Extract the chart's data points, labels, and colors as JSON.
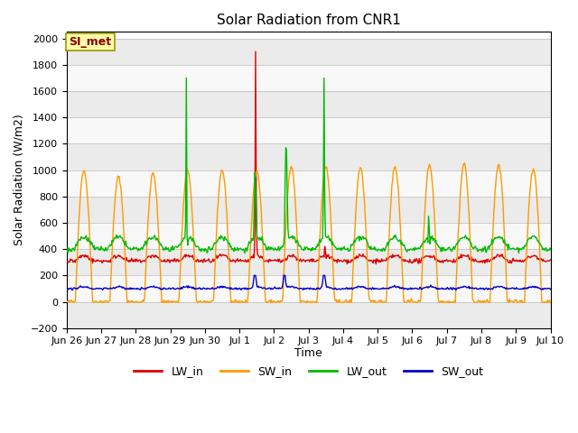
{
  "title": "Solar Radiation from CNR1",
  "xlabel": "Time",
  "ylabel": "Solar Radiation (W/m2)",
  "ylim": [
    -200,
    2050
  ],
  "yticks": [
    -200,
    0,
    200,
    400,
    600,
    800,
    1000,
    1200,
    1400,
    1600,
    1800,
    2000
  ],
  "station_label": "SI_met",
  "background_color": "#ffffff",
  "band_colors": [
    "#e8e8e8",
    "#d8d8d8"
  ],
  "line_colors": {
    "LW_in": "#dd0000",
    "SW_in": "#ff9900",
    "LW_out": "#00bb00",
    "SW_out": "#0000cc"
  },
  "x_tick_labels": [
    "Jun 26",
    "Jun 27",
    "Jun 28",
    "Jun 29",
    "Jun 30",
    "Jul 1",
    "Jul 2",
    "Jul 3",
    "Jul 4",
    "Jul 5",
    "Jul 6",
    "Jul 7",
    "Jul 8",
    "Jul 9",
    "Jul 10"
  ],
  "n_days": 14,
  "n_per_day": 48
}
